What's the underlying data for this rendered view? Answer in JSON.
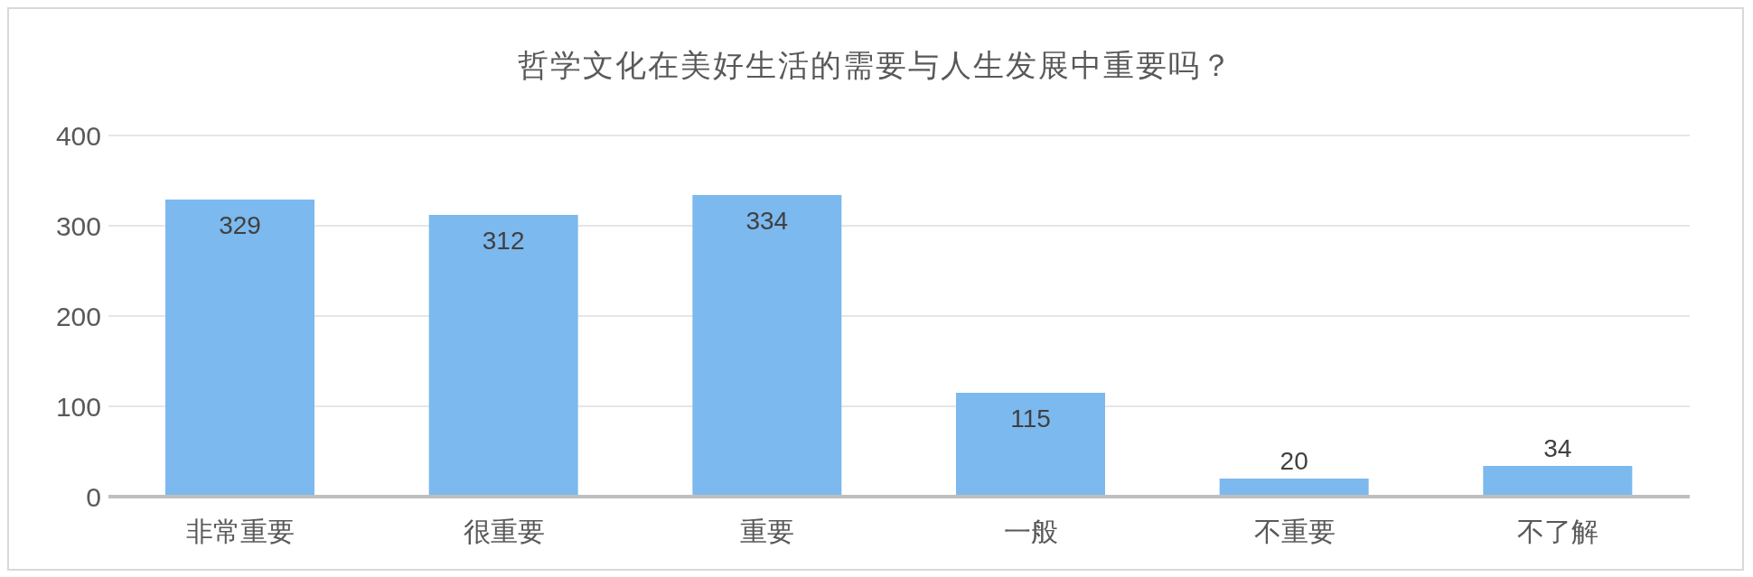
{
  "chart_data": {
    "type": "bar",
    "title": "哲学文化在美好生活的需要与人生发展中重要吗？",
    "categories": [
      "非常重要",
      "很重要",
      "重要",
      "一般",
      "不重要",
      "不了解"
    ],
    "values": [
      329,
      312,
      334,
      115,
      20,
      34
    ],
    "color": "#7cb9ee",
    "ylim": [
      0,
      400
    ],
    "yticks": [
      0,
      100,
      200,
      300,
      400
    ],
    "grid": "y",
    "data_labels": true
  }
}
